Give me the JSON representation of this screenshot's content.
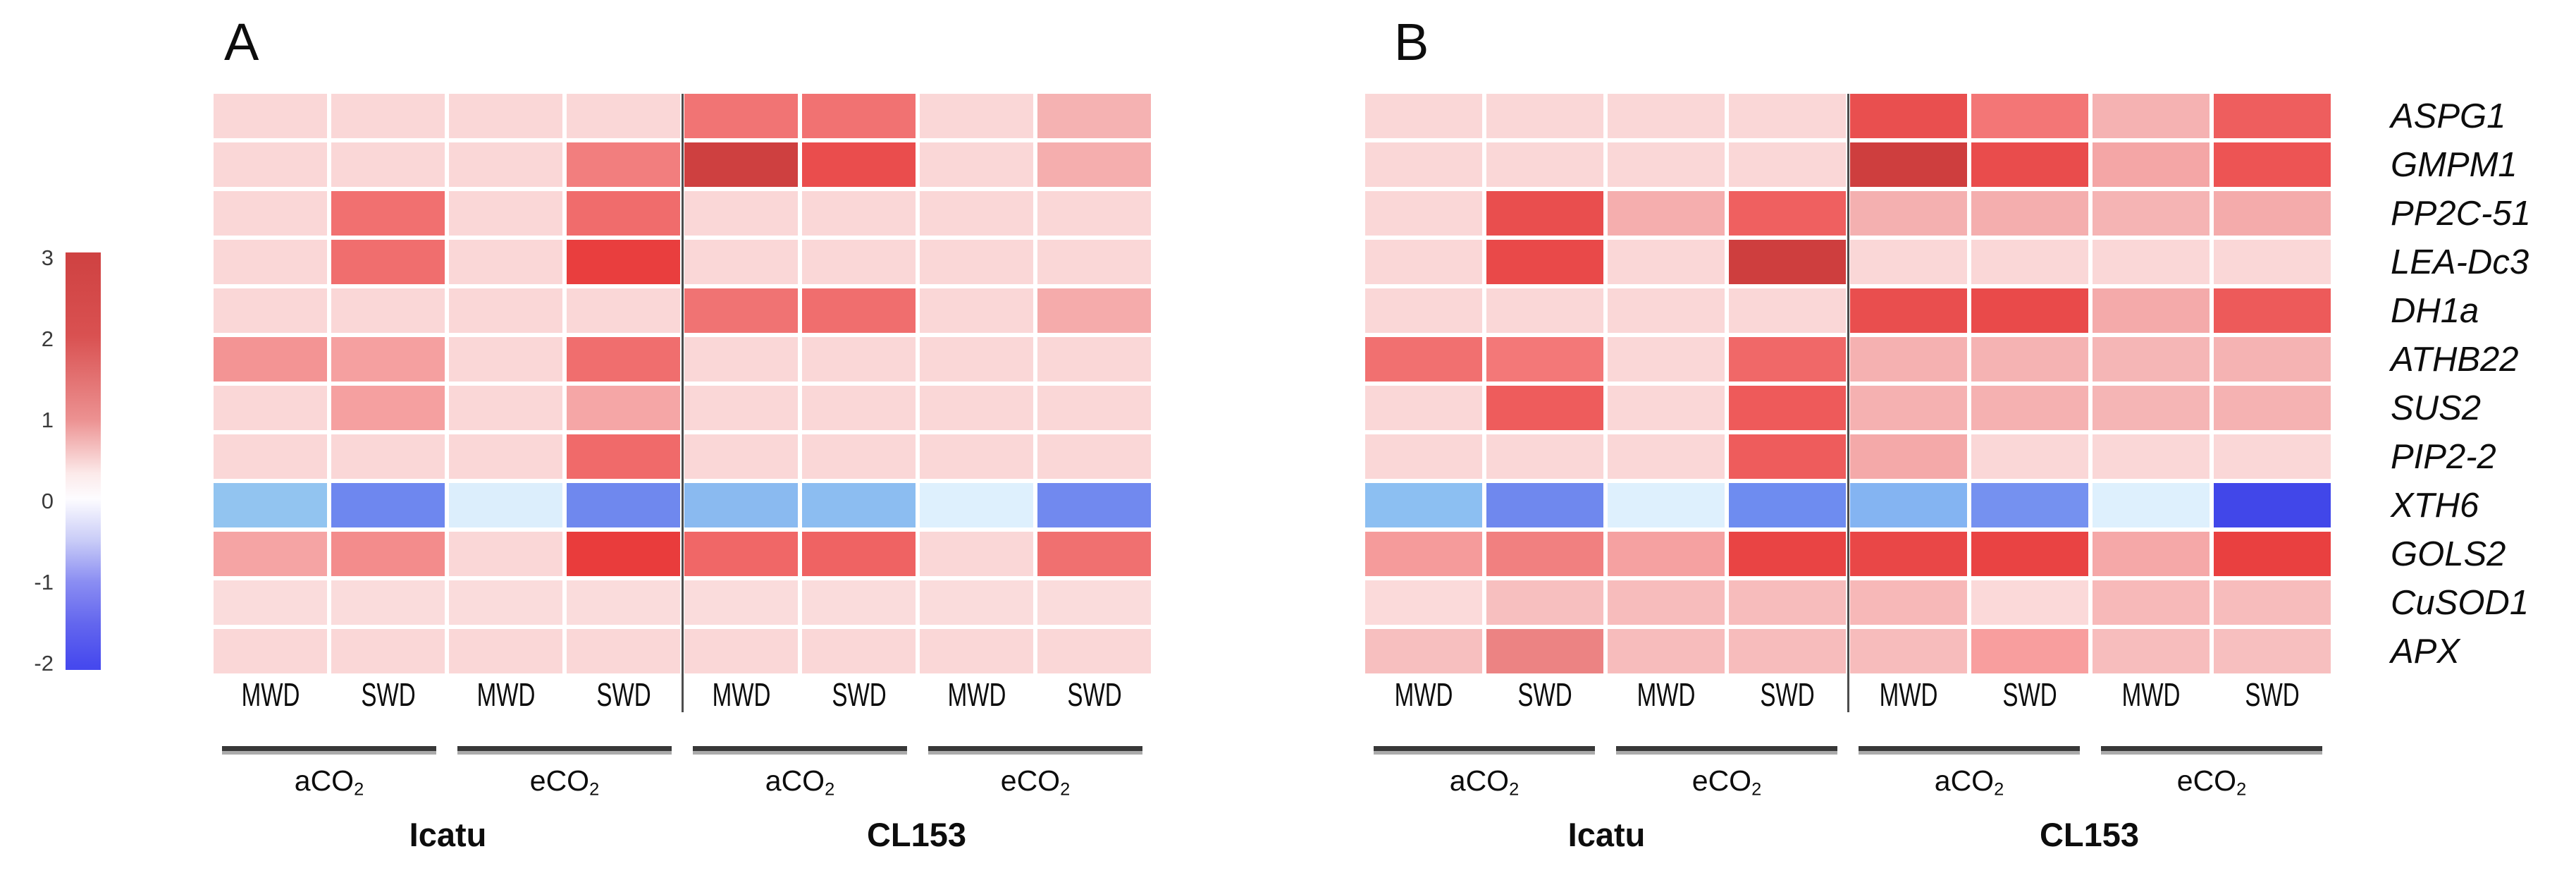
{
  "legend": {
    "ticks": [
      "3",
      "2",
      "1",
      "0",
      "-1",
      "-2"
    ],
    "top_color": "#cf4242",
    "zero_color": "#ffffff",
    "bottom_color": "#4649ee"
  },
  "genes": [
    "ASPG1",
    "GMPM1",
    "PP2C-51",
    "LEA-Dc3",
    "DH1a",
    "ATHB22",
    "SUS2",
    "PIP2-2",
    "XTH6",
    "GOLS2",
    "CuSOD1",
    "APX"
  ],
  "columns": {
    "water": [
      "MWD",
      "SWD",
      "MWD",
      "SWD",
      "MWD",
      "SWD",
      "MWD",
      "SWD"
    ],
    "co2_groups": [
      {
        "base": "aCO",
        "sub": "2"
      },
      {
        "base": "eCO",
        "sub": "2"
      },
      {
        "base": "aCO",
        "sub": "2"
      },
      {
        "base": "eCO",
        "sub": "2"
      }
    ],
    "genotypes": [
      "Icatu",
      "CL153"
    ]
  },
  "chart_data": {
    "type": "heatmap",
    "title": "",
    "value_scale": {
      "min": -2,
      "max": 3,
      "legend_ticks": [
        3,
        2,
        1,
        0,
        -1,
        -2
      ]
    },
    "rows": [
      "ASPG1",
      "GMPM1",
      "PP2C-51",
      "LEA-Dc3",
      "DH1a",
      "ATHB22",
      "SUS2",
      "PIP2-2",
      "XTH6",
      "GOLS2",
      "CuSOD1",
      "APX"
    ],
    "column_structure": {
      "genotypes": [
        "Icatu",
        "CL153"
      ],
      "co2_per_genotype": [
        "aCO2",
        "eCO2"
      ],
      "water_per_co2": [
        "MWD",
        "SWD"
      ]
    },
    "panels": [
      {
        "label": "A",
        "values": [
          [
            0.4,
            0.4,
            0.4,
            0.4,
            1.6,
            1.6,
            0.4,
            0.8
          ],
          [
            0.4,
            0.4,
            0.4,
            1.4,
            2.9,
            2.2,
            0.4,
            0.8
          ],
          [
            0.4,
            1.6,
            0.4,
            1.7,
            0.4,
            0.4,
            0.4,
            0.4
          ],
          [
            0.4,
            1.6,
            0.4,
            2.4,
            0.4,
            0.4,
            0.4,
            0.4
          ],
          [
            0.4,
            0.4,
            0.4,
            0.4,
            1.6,
            1.6,
            0.4,
            0.9
          ],
          [
            1.2,
            1.0,
            0.4,
            1.6,
            0.4,
            0.4,
            0.4,
            0.4
          ],
          [
            0.4,
            1.0,
            0.4,
            1.0,
            0.4,
            0.4,
            0.4,
            0.4
          ],
          [
            0.4,
            0.4,
            0.4,
            1.7,
            0.4,
            0.4,
            0.4,
            0.4
          ],
          [
            -0.8,
            -1.3,
            -0.2,
            -1.3,
            -0.8,
            -0.8,
            -0.2,
            -1.2
          ],
          [
            1.0,
            1.3,
            0.4,
            2.4,
            1.7,
            1.8,
            0.4,
            1.6
          ],
          [
            0.4,
            0.4,
            0.4,
            0.4,
            0.4,
            0.4,
            0.4,
            0.4
          ],
          [
            0.4,
            0.4,
            0.4,
            0.4,
            0.4,
            0.4,
            0.4,
            0.4
          ]
        ],
        "colors": [
          [
            "#fad7d7",
            "#fad7d7",
            "#fad7d7",
            "#fad7d7",
            "#f17474",
            "#f17272",
            "#fad7d7",
            "#f5b2b2"
          ],
          [
            "#fad7d7",
            "#fad7d7",
            "#fad7d7",
            "#f27e7e",
            "#ce4040",
            "#ea4d4d",
            "#fad7d7",
            "#f5aeae"
          ],
          [
            "#fad7d7",
            "#f17070",
            "#fad7d7",
            "#f06c6c",
            "#fad7d7",
            "#fad7d7",
            "#fad7d7",
            "#fad7d7"
          ],
          [
            "#fad7d7",
            "#f06e6e",
            "#fad7d7",
            "#e93e3e",
            "#fad7d7",
            "#fad7d7",
            "#fad7d7",
            "#fad7d7"
          ],
          [
            "#fad7d7",
            "#fad7d7",
            "#fad7d7",
            "#fad7d7",
            "#f07373",
            "#f06e6e",
            "#fad7d7",
            "#f5abab"
          ],
          [
            "#f39494",
            "#f5a0a0",
            "#fad7d7",
            "#f06e6e",
            "#fad7d7",
            "#fad7d7",
            "#fad7d7",
            "#fad7d7"
          ],
          [
            "#fad7d7",
            "#f5a0a0",
            "#fad7d7",
            "#f5a6a6",
            "#fad7d7",
            "#fad7d7",
            "#fad7d7",
            "#fad7d7"
          ],
          [
            "#fad7d7",
            "#fad7d7",
            "#fad7d7",
            "#f06a6a",
            "#fad7d7",
            "#fad7d7",
            "#fad7d7",
            "#fad7d7"
          ],
          [
            "#92c4f0",
            "#6e87ef",
            "#dceefc",
            "#6f88ee",
            "#8abaf0",
            "#8cbdf1",
            "#def0fd",
            "#7189ef"
          ],
          [
            "#f5a4a4",
            "#f38c8c",
            "#fad7d7",
            "#e93c3c",
            "#f06767",
            "#ef6363",
            "#fad7d7",
            "#f07070"
          ],
          [
            "#fadcdc",
            "#fadcdc",
            "#fadcdc",
            "#fadcdc",
            "#fadcdc",
            "#fadcdc",
            "#fadcdc",
            "#fadcdc"
          ],
          [
            "#fad7d7",
            "#fad7d7",
            "#fad7d7",
            "#fad7d7",
            "#fad7d7",
            "#fad7d7",
            "#fad7d7",
            "#fad7d7"
          ]
        ]
      },
      {
        "label": "B",
        "values": [
          [
            0.4,
            0.4,
            0.4,
            0.4,
            2.2,
            1.5,
            0.8,
            1.9
          ],
          [
            0.4,
            0.4,
            0.4,
            0.4,
            2.9,
            2.2,
            1.0,
            2.0
          ],
          [
            0.4,
            2.2,
            0.8,
            1.8,
            0.8,
            0.8,
            0.8,
            0.9
          ],
          [
            0.4,
            2.2,
            0.4,
            2.9,
            0.4,
            0.4,
            0.4,
            0.4
          ],
          [
            0.4,
            0.4,
            0.4,
            0.4,
            2.2,
            2.2,
            0.9,
            1.9
          ],
          [
            1.6,
            1.5,
            0.4,
            1.7,
            0.8,
            0.8,
            0.8,
            0.8
          ],
          [
            0.4,
            1.9,
            0.4,
            1.9,
            0.8,
            0.8,
            0.8,
            0.8
          ],
          [
            0.4,
            0.4,
            0.4,
            1.9,
            0.9,
            0.4,
            0.4,
            0.4
          ],
          [
            -0.8,
            -1.3,
            -0.2,
            -1.3,
            -0.9,
            -1.2,
            -0.2,
            -1.9
          ],
          [
            1.1,
            1.4,
            1.0,
            2.3,
            2.3,
            2.3,
            0.9,
            2.4
          ],
          [
            0.3,
            0.7,
            0.7,
            0.7,
            0.7,
            0.4,
            0.7,
            0.7
          ],
          [
            0.7,
            1.4,
            0.7,
            0.7,
            0.7,
            1.0,
            0.7,
            0.7
          ]
        ],
        "colors": [
          [
            "#fad7d7",
            "#fad7d7",
            "#fad7d7",
            "#fad7d7",
            "#e94f4f",
            "#f37676",
            "#f5b2b2",
            "#ee5e5e"
          ],
          [
            "#fad7d7",
            "#fad7d7",
            "#fad7d7",
            "#fad7d7",
            "#ce3e3e",
            "#e94c4c",
            "#f4a6a6",
            "#ed5454"
          ],
          [
            "#fad7d7",
            "#e94e4e",
            "#f5aeae",
            "#ef6060",
            "#f4b0b0",
            "#f4aeae",
            "#f5b4b4",
            "#f4abab"
          ],
          [
            "#fad7d7",
            "#e94949",
            "#fad7d7",
            "#ce3e3e",
            "#fad7d7",
            "#fad7d7",
            "#fad7d7",
            "#fad7d7"
          ],
          [
            "#fad7d7",
            "#fad7d7",
            "#fad7d7",
            "#fad7d7",
            "#e94e4e",
            "#e94a4a",
            "#f4aaaa",
            "#ed5a5a"
          ],
          [
            "#f17070",
            "#f37878",
            "#fad7d7",
            "#f06868",
            "#f5b1b1",
            "#f5b3b3",
            "#f5b6b6",
            "#f5b3b3"
          ],
          [
            "#fad7d7",
            "#ee5c5c",
            "#fad7d7",
            "#ee5a5a",
            "#f5b1b1",
            "#f5b1b1",
            "#f5b5b5",
            "#f5b2b2"
          ],
          [
            "#fad7d7",
            "#fad7d7",
            "#fad7d7",
            "#ee5c5c",
            "#f4a9a9",
            "#fad7d7",
            "#fad7d7",
            "#fad7d7"
          ],
          [
            "#8cbff2",
            "#6f88ee",
            "#def0fd",
            "#6e8cf0",
            "#84b4f2",
            "#7591f0",
            "#def0fd",
            "#4147e9"
          ],
          [
            "#f59b9b",
            "#f18080",
            "#f5a1a1",
            "#e94444",
            "#e94747",
            "#e94343",
            "#f5a8a8",
            "#e94040"
          ],
          [
            "#fbdada",
            "#f7bfbf",
            "#f7bcbc",
            "#f7bcbc",
            "#f7b8b8",
            "#fbd9d9",
            "#f7b9b9",
            "#f7bcbc"
          ],
          [
            "#f7bfbf",
            "#ec8383",
            "#f7bcbc",
            "#f7bcbc",
            "#f7bcbc",
            "#f89e9e",
            "#f7bdbd",
            "#f7bfbf"
          ]
        ]
      }
    ]
  }
}
